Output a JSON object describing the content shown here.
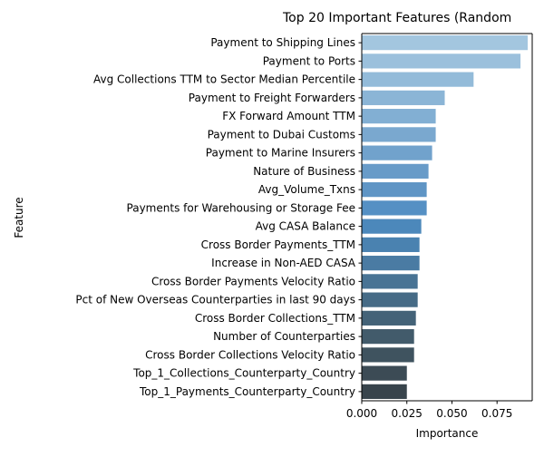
{
  "chart_data": {
    "type": "bar",
    "orientation": "horizontal",
    "title": "Top 20 Important Features (Random",
    "xlabel": "Importance",
    "ylabel": "Feature",
    "xlim": [
      0,
      0.0945
    ],
    "xticks": [
      0.0,
      0.025,
      0.05,
      0.075
    ],
    "xtick_labels": [
      "0.000",
      "0.025",
      "0.050",
      "0.075"
    ],
    "grid": false,
    "categories": [
      "Payment to Shipping Lines",
      "Payment to Ports",
      "Avg Collections TTM to Sector Median Percentile",
      "Payment to Freight Forwarders",
      "FX Forward Amount TTM",
      "Payment to Dubai Customs",
      "Payment to Marine Insurers",
      "Nature of Business",
      "Avg_Volume_Txns",
      "Payments for Warehousing or Storage Fee",
      "Avg CASA Balance",
      "Cross Border Payments_TTM",
      "Increase in Non-AED CASA",
      "Cross Border Payments Velocity Ratio",
      "Pct of New Overseas Counterparties in last 90 days",
      "Cross Border Collections_TTM",
      "Number of Counterparties",
      "Cross Border Collections Velocity Ratio",
      "Top_1_Collections_Counterparty_Country",
      "Top_1_Payments_Counterparty_Country"
    ],
    "values": [
      0.092,
      0.088,
      0.062,
      0.046,
      0.041,
      0.041,
      0.039,
      0.037,
      0.036,
      0.036,
      0.033,
      0.032,
      0.032,
      0.031,
      0.031,
      0.03,
      0.029,
      0.029,
      0.025,
      0.025
    ],
    "colors": [
      "#a3c6df",
      "#9bc0dc",
      "#93bbd9",
      "#8bb5d6",
      "#82afd3",
      "#7aa8cf",
      "#71a2cc",
      "#689bc8",
      "#5f95c5",
      "#5590c4",
      "#4c88bb",
      "#4a82b0",
      "#4a7ba3",
      "#487394",
      "#466b86",
      "#446378",
      "#425b6b",
      "#3f535f",
      "#3c4b55",
      "#38444c"
    ]
  }
}
